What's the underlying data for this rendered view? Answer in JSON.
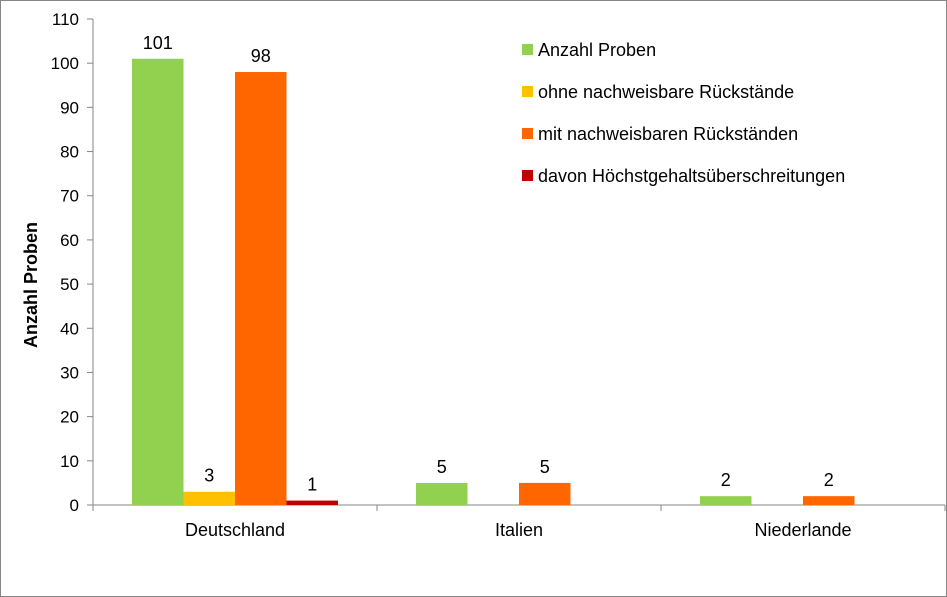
{
  "chart_data": {
    "type": "bar",
    "title": "",
    "xlabel": "",
    "ylabel": "Anzahl Proben",
    "ylim": [
      0,
      110
    ],
    "y_ticks": [
      0,
      10,
      20,
      30,
      40,
      50,
      60,
      70,
      80,
      90,
      100,
      110
    ],
    "grid": false,
    "legend_position": "top-right",
    "categories": [
      "Deutschland",
      "Italien",
      "Niederlande"
    ],
    "series": [
      {
        "name": "Anzahl Proben",
        "color": "#92D050",
        "values": [
          101,
          5,
          2
        ]
      },
      {
        "name": "ohne nachweisbare Rückstände",
        "color": "#FFC000",
        "values": [
          3,
          0,
          0
        ]
      },
      {
        "name": "mit nachweisbaren Rückständen",
        "color": "#FF6600",
        "values": [
          98,
          5,
          2
        ]
      },
      {
        "name": "davon Höchstgehaltsüberschreitungen",
        "color": "#C00000",
        "values": [
          1,
          0,
          0
        ]
      }
    ]
  }
}
